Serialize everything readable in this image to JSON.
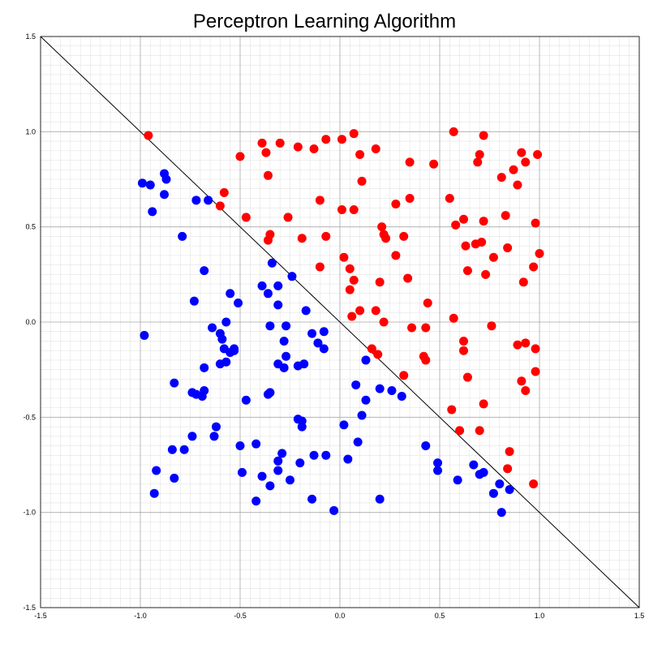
{
  "chart_data": {
    "type": "scatter",
    "title": "Perceptron Learning Algorithm",
    "xlabel": "",
    "ylabel": "",
    "xlim": [
      -1.5,
      1.5
    ],
    "ylim": [
      -1.5,
      1.5
    ],
    "x_ticks": [
      "-1.5",
      "-1.0",
      "-0.5",
      "0.0",
      "0.5",
      "1.0",
      "1.5"
    ],
    "y_ticks": [
      "1.5",
      "1.0",
      "0.5",
      "0.0",
      "-0.5",
      "-1.0",
      "-1.5"
    ],
    "grid": {
      "major": true,
      "minor": true,
      "major_step": 0.5,
      "minor_step": 0.05
    },
    "decision_boundary": {
      "x": [
        -1.5,
        1.5
      ],
      "y": [
        1.5,
        -1.5
      ],
      "color": "#000000"
    },
    "series": [
      {
        "color": "#ff0000",
        "points": [
          [
            -0.96,
            0.98
          ],
          [
            -0.5,
            0.87
          ],
          [
            -0.39,
            0.94
          ],
          [
            -0.37,
            0.89
          ],
          [
            -0.3,
            0.94
          ],
          [
            -0.21,
            0.92
          ],
          [
            -0.13,
            0.91
          ],
          [
            -0.07,
            0.96
          ],
          [
            0.01,
            0.96
          ],
          [
            0.07,
            0.99
          ],
          [
            0.1,
            0.88
          ],
          [
            0.18,
            0.91
          ],
          [
            0.57,
            1.0
          ],
          [
            0.7,
            0.88
          ],
          [
            0.72,
            0.98
          ],
          [
            0.91,
            0.89
          ],
          [
            0.99,
            0.88
          ],
          [
            0.69,
            0.84
          ],
          [
            0.93,
            0.84
          ],
          [
            0.35,
            0.84
          ],
          [
            0.47,
            0.83
          ],
          [
            0.87,
            0.8
          ],
          [
            0.81,
            0.76
          ],
          [
            -0.36,
            0.77
          ],
          [
            0.11,
            0.74
          ],
          [
            0.89,
            0.72
          ],
          [
            -0.58,
            0.68
          ],
          [
            -0.1,
            0.64
          ],
          [
            0.35,
            0.65
          ],
          [
            0.55,
            0.65
          ],
          [
            -0.6,
            0.61
          ],
          [
            0.28,
            0.62
          ],
          [
            0.01,
            0.59
          ],
          [
            0.07,
            0.59
          ],
          [
            -0.47,
            0.55
          ],
          [
            -0.26,
            0.55
          ],
          [
            0.62,
            0.54
          ],
          [
            0.72,
            0.53
          ],
          [
            0.83,
            0.56
          ],
          [
            0.58,
            0.51
          ],
          [
            0.21,
            0.5
          ],
          [
            0.98,
            0.52
          ],
          [
            -0.35,
            0.46
          ],
          [
            -0.36,
            0.43
          ],
          [
            -0.19,
            0.44
          ],
          [
            -0.07,
            0.45
          ],
          [
            0.22,
            0.46
          ],
          [
            0.23,
            0.44
          ],
          [
            0.32,
            0.45
          ],
          [
            0.63,
            0.4
          ],
          [
            0.68,
            0.41
          ],
          [
            0.71,
            0.42
          ],
          [
            0.84,
            0.39
          ],
          [
            1.0,
            0.36
          ],
          [
            0.02,
            0.34
          ],
          [
            0.28,
            0.35
          ],
          [
            0.77,
            0.34
          ],
          [
            -0.1,
            0.29
          ],
          [
            0.05,
            0.28
          ],
          [
            0.64,
            0.27
          ],
          [
            0.73,
            0.25
          ],
          [
            0.97,
            0.29
          ],
          [
            0.07,
            0.22
          ],
          [
            0.2,
            0.21
          ],
          [
            0.34,
            0.23
          ],
          [
            0.92,
            0.21
          ],
          [
            0.05,
            0.17
          ],
          [
            0.1,
            0.06
          ],
          [
            0.18,
            0.06
          ],
          [
            0.06,
            0.03
          ],
          [
            0.44,
            0.1
          ],
          [
            0.57,
            0.02
          ],
          [
            0.22,
            0.0
          ],
          [
            0.36,
            -0.03
          ],
          [
            0.43,
            -0.03
          ],
          [
            0.76,
            -0.02
          ],
          [
            0.62,
            -0.1
          ],
          [
            0.89,
            -0.12
          ],
          [
            0.93,
            -0.11
          ],
          [
            0.16,
            -0.14
          ],
          [
            0.98,
            -0.14
          ],
          [
            0.19,
            -0.17
          ],
          [
            0.42,
            -0.18
          ],
          [
            0.43,
            -0.2
          ],
          [
            0.62,
            -0.15
          ],
          [
            0.98,
            -0.26
          ],
          [
            0.64,
            -0.29
          ],
          [
            0.32,
            -0.28
          ],
          [
            0.91,
            -0.31
          ],
          [
            0.93,
            -0.36
          ],
          [
            0.72,
            -0.43
          ],
          [
            0.56,
            -0.46
          ],
          [
            0.6,
            -0.57
          ],
          [
            0.7,
            -0.57
          ],
          [
            0.85,
            -0.68
          ],
          [
            0.84,
            -0.77
          ],
          [
            0.97,
            -0.85
          ]
        ]
      },
      {
        "color": "#0000ff",
        "points": [
          [
            -0.99,
            0.73
          ],
          [
            -0.95,
            0.72
          ],
          [
            -0.88,
            0.78
          ],
          [
            -0.87,
            0.75
          ],
          [
            -0.88,
            0.67
          ],
          [
            -0.94,
            0.58
          ],
          [
            -0.72,
            0.64
          ],
          [
            -0.66,
            0.64
          ],
          [
            -0.79,
            0.45
          ],
          [
            -0.34,
            0.31
          ],
          [
            -0.68,
            0.27
          ],
          [
            -0.24,
            0.24
          ],
          [
            -0.31,
            0.19
          ],
          [
            -0.39,
            0.19
          ],
          [
            -0.36,
            0.15
          ],
          [
            -0.55,
            0.15
          ],
          [
            -0.51,
            0.1
          ],
          [
            -0.73,
            0.11
          ],
          [
            -0.31,
            0.09
          ],
          [
            -0.17,
            0.06
          ],
          [
            -0.57,
            0.0
          ],
          [
            -0.98,
            -0.07
          ],
          [
            -0.64,
            -0.03
          ],
          [
            -0.35,
            -0.02
          ],
          [
            -0.27,
            -0.02
          ],
          [
            -0.6,
            -0.06
          ],
          [
            -0.59,
            -0.09
          ],
          [
            -0.14,
            -0.06
          ],
          [
            -0.08,
            -0.05
          ],
          [
            -0.28,
            -0.1
          ],
          [
            -0.11,
            -0.11
          ],
          [
            -0.58,
            -0.14
          ],
          [
            -0.55,
            -0.16
          ],
          [
            -0.53,
            -0.15
          ],
          [
            -0.53,
            -0.14
          ],
          [
            -0.08,
            -0.14
          ],
          [
            -0.27,
            -0.18
          ],
          [
            -0.57,
            -0.21
          ],
          [
            -0.6,
            -0.22
          ],
          [
            -0.31,
            -0.22
          ],
          [
            -0.21,
            -0.23
          ],
          [
            -0.18,
            -0.22
          ],
          [
            -0.28,
            -0.24
          ],
          [
            -0.68,
            -0.24
          ],
          [
            0.13,
            -0.2
          ],
          [
            -0.83,
            -0.32
          ],
          [
            0.08,
            -0.33
          ],
          [
            -0.74,
            -0.37
          ],
          [
            -0.72,
            -0.38
          ],
          [
            -0.69,
            -0.39
          ],
          [
            -0.68,
            -0.36
          ],
          [
            -0.35,
            -0.37
          ],
          [
            -0.36,
            -0.38
          ],
          [
            -0.47,
            -0.41
          ],
          [
            0.13,
            -0.41
          ],
          [
            0.2,
            -0.35
          ],
          [
            0.26,
            -0.36
          ],
          [
            0.31,
            -0.39
          ],
          [
            0.11,
            -0.49
          ],
          [
            -0.21,
            -0.51
          ],
          [
            -0.19,
            -0.52
          ],
          [
            -0.19,
            -0.55
          ],
          [
            0.02,
            -0.54
          ],
          [
            -0.62,
            -0.55
          ],
          [
            -0.74,
            -0.6
          ],
          [
            -0.63,
            -0.6
          ],
          [
            0.09,
            -0.63
          ],
          [
            -0.42,
            -0.64
          ],
          [
            -0.5,
            -0.65
          ],
          [
            -0.84,
            -0.67
          ],
          [
            -0.78,
            -0.67
          ],
          [
            -0.29,
            -0.69
          ],
          [
            -0.13,
            -0.7
          ],
          [
            -0.07,
            -0.7
          ],
          [
            -0.31,
            -0.73
          ],
          [
            -0.2,
            -0.74
          ],
          [
            0.04,
            -0.72
          ],
          [
            0.43,
            -0.65
          ],
          [
            0.49,
            -0.74
          ],
          [
            0.67,
            -0.75
          ],
          [
            -0.92,
            -0.78
          ],
          [
            -0.31,
            -0.78
          ],
          [
            -0.49,
            -0.79
          ],
          [
            -0.39,
            -0.81
          ],
          [
            0.49,
            -0.78
          ],
          [
            0.7,
            -0.8
          ],
          [
            0.72,
            -0.79
          ],
          [
            -0.83,
            -0.82
          ],
          [
            -0.25,
            -0.83
          ],
          [
            0.59,
            -0.83
          ],
          [
            0.8,
            -0.85
          ],
          [
            -0.35,
            -0.86
          ],
          [
            0.85,
            -0.88
          ],
          [
            0.77,
            -0.9
          ],
          [
            -0.93,
            -0.9
          ],
          [
            -0.42,
            -0.94
          ],
          [
            -0.14,
            -0.93
          ],
          [
            0.2,
            -0.93
          ],
          [
            -0.03,
            -0.99
          ],
          [
            0.81,
            -1.0
          ]
        ]
      }
    ]
  }
}
